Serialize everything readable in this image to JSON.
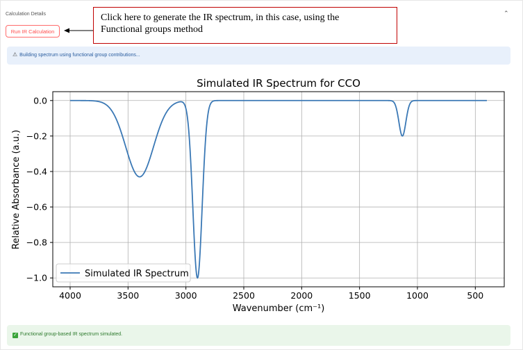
{
  "section": {
    "title": "Calculation Details"
  },
  "run_button": {
    "label": "Run IR Calculation"
  },
  "annotation": {
    "line1": "Click here to generate the IR spectrum, in this case, using the",
    "line2": "Functional groups method"
  },
  "info": {
    "text": "Building spectrum using functional group contributions..."
  },
  "success": {
    "text": "Functional group-based IR spectrum simulated."
  },
  "icons": {
    "collapse": "chevron-up-icon",
    "info": "warning-triangle-icon",
    "success": "check-box-icon",
    "arrow": "arrow-left-icon"
  },
  "colors": {
    "accent": "#ff4b4b",
    "line": "#3a78b5",
    "annotation_border": "#c00000"
  },
  "chart_data": {
    "type": "line",
    "title": "Simulated IR Spectrum for CCO",
    "xlabel": "Wavenumber (cm⁻¹)",
    "ylabel": "Relative Absorbance (a.u.)",
    "x_reversed": true,
    "xlim": [
      4150,
      250
    ],
    "ylim": [
      -1.05,
      0.05
    ],
    "xticks": [
      4000,
      3500,
      3000,
      2500,
      2000,
      1500,
      1000,
      500
    ],
    "xtick_labels": [
      "4000",
      "3500",
      "3000",
      "2500",
      "2000",
      "1500",
      "1000",
      "500"
    ],
    "yticks": [
      0.0,
      -0.2,
      -0.4,
      -0.6,
      -0.8,
      -1.0
    ],
    "ytick_labels": [
      "0.0",
      "−0.2",
      "−0.4",
      "−0.6",
      "−0.8",
      "−1.0"
    ],
    "grid": true,
    "legend": "lower-left",
    "x_range": [
      4000,
      400
    ],
    "series": [
      {
        "name": "Simulated IR Spectrum",
        "peaks": [
          {
            "center": 3400,
            "depth": 0.43,
            "width": 120
          },
          {
            "center": 2900,
            "depth": 1.0,
            "width": 40
          },
          {
            "center": 1130,
            "depth": 0.2,
            "width": 30
          }
        ]
      }
    ]
  }
}
